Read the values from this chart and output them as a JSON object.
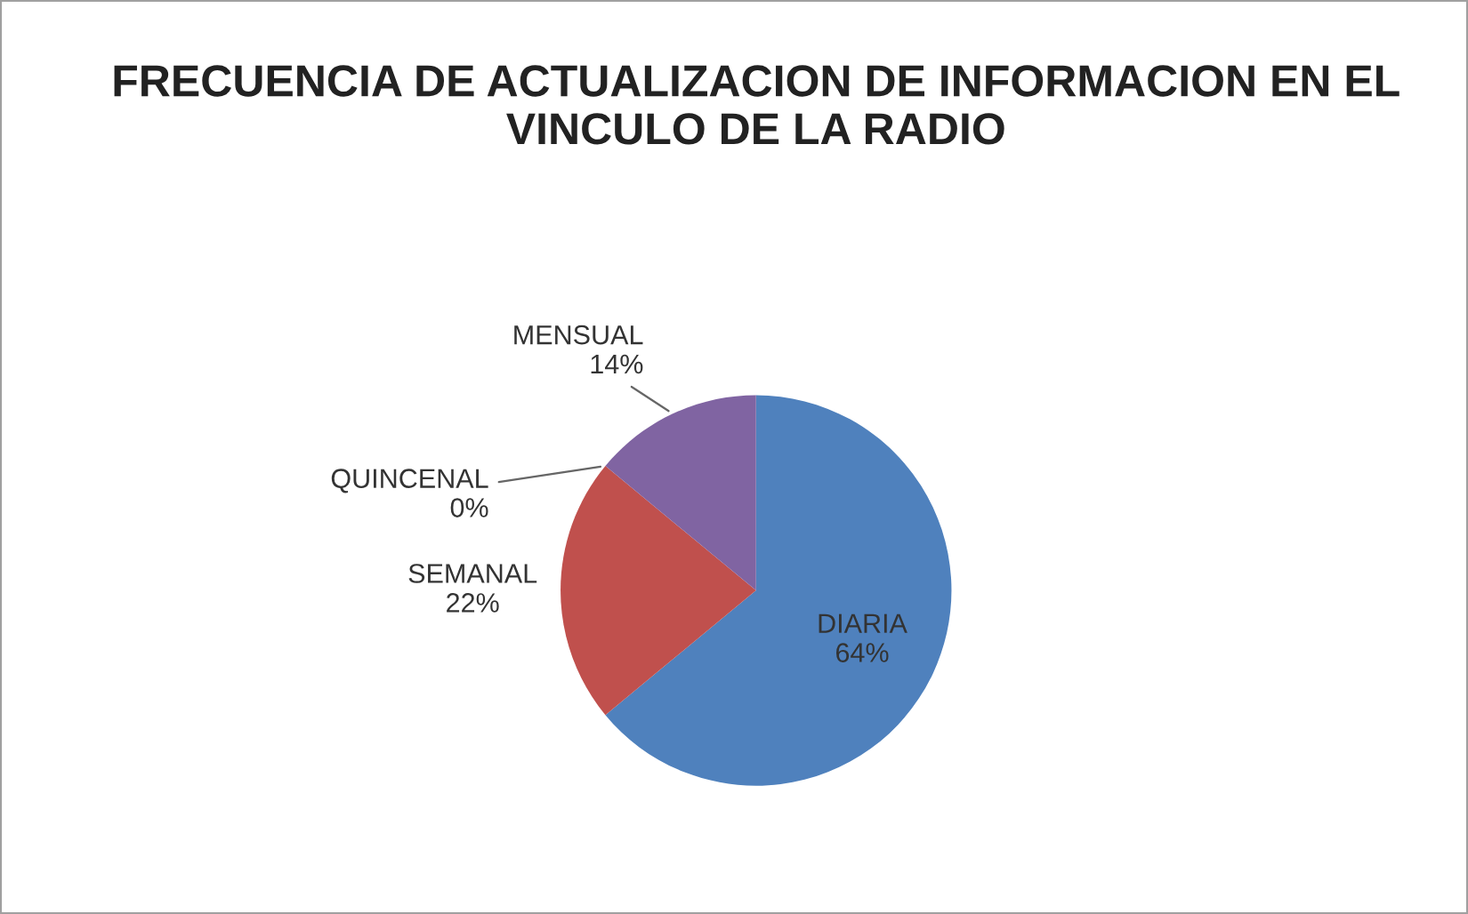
{
  "chart_data": {
    "type": "pie",
    "title": "FRECUENCIA DE ACTUALIZACION DE INFORMACION EN EL VINCULO DE LA RADIO",
    "categories": [
      "DIARIA",
      "SEMANAL",
      "QUINCENAL",
      "MENSUAL"
    ],
    "values": [
      64,
      22,
      0,
      14
    ],
    "value_labels": [
      "64%",
      "22%",
      "0%",
      "14%"
    ],
    "colors": [
      "#4f81bd",
      "#c0504d",
      "#9bbb59",
      "#8064a2"
    ]
  }
}
